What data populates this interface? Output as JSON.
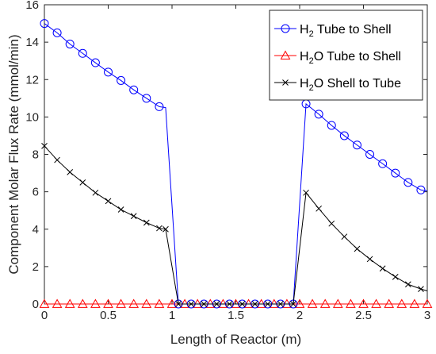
{
  "chart_data": {
    "type": "line",
    "xlabel": "Length of Reactor (m)",
    "ylabel": "Component Molar Flux Rate (mmol/min)",
    "xlim": [
      0,
      3
    ],
    "ylim": [
      0,
      16
    ],
    "xticks": [
      "0",
      "0.5",
      "1",
      "1.5",
      "2",
      "2.5",
      "3"
    ],
    "yticks": [
      "0",
      "2",
      "4",
      "6",
      "8",
      "10",
      "12",
      "14",
      "16"
    ],
    "grid": false,
    "legend_position": "top-right",
    "series": [
      {
        "name": "H2 Tube to Shell",
        "legend_parts": [
          "H",
          "2",
          " Tube to Shell"
        ],
        "color": "#0000ff",
        "marker": "circle",
        "x": [
          0,
          0.1,
          0.2,
          0.3,
          0.4,
          0.5,
          0.6,
          0.7,
          0.8,
          0.9,
          0.95,
          1.05,
          1.15,
          1.25,
          1.35,
          1.45,
          1.55,
          1.65,
          1.75,
          1.85,
          1.95,
          2.05,
          2.15,
          2.25,
          2.35,
          2.45,
          2.55,
          2.65,
          2.75,
          2.85,
          2.95,
          3.0
        ],
        "y": [
          15.0,
          14.5,
          13.9,
          13.4,
          12.9,
          12.4,
          11.95,
          11.45,
          11.0,
          10.55,
          10.5,
          0,
          0,
          0,
          0,
          0,
          0,
          0,
          0,
          0,
          0,
          10.7,
          10.15,
          9.55,
          9.0,
          8.5,
          8.0,
          7.5,
          7.0,
          6.5,
          6.1,
          6.05
        ],
        "marker_x": [
          0,
          0.1,
          0.2,
          0.3,
          0.4,
          0.5,
          0.6,
          0.7,
          0.8,
          0.9,
          1.05,
          1.15,
          1.25,
          1.35,
          1.45,
          1.55,
          1.65,
          1.75,
          1.85,
          1.95,
          2.05,
          2.15,
          2.25,
          2.35,
          2.45,
          2.55,
          2.65,
          2.75,
          2.85,
          2.95
        ],
        "marker_y": [
          15.0,
          14.5,
          13.9,
          13.4,
          12.9,
          12.4,
          11.95,
          11.45,
          11.0,
          10.55,
          0,
          0,
          0,
          0,
          0,
          0,
          0,
          0,
          0,
          0,
          10.7,
          10.15,
          9.55,
          9.0,
          8.5,
          8.0,
          7.5,
          7.0,
          6.5,
          6.1
        ]
      },
      {
        "name": "H2O Tube to Shell",
        "legend_parts": [
          "H",
          "2",
          "O Tube to Shell"
        ],
        "color": "#ff0000",
        "marker": "triangle",
        "x": [
          0,
          3
        ],
        "y": [
          0,
          0
        ],
        "marker_x": [
          0,
          0.1,
          0.2,
          0.3,
          0.4,
          0.5,
          0.6,
          0.7,
          0.8,
          0.9,
          1.0,
          1.1,
          1.2,
          1.3,
          1.4,
          1.5,
          1.6,
          1.7,
          1.8,
          1.9,
          2.0,
          2.1,
          2.2,
          2.3,
          2.4,
          2.5,
          2.6,
          2.7,
          2.8,
          2.9,
          3.0
        ],
        "marker_y": [
          0,
          0,
          0,
          0,
          0,
          0,
          0,
          0,
          0,
          0,
          0,
          0,
          0,
          0,
          0,
          0,
          0,
          0,
          0,
          0,
          0,
          0,
          0,
          0,
          0,
          0,
          0,
          0,
          0,
          0,
          0
        ]
      },
      {
        "name": "H2O Shell to Tube",
        "legend_parts": [
          "H",
          "2",
          "O Shell to Tube"
        ],
        "color": "#000000",
        "marker": "x",
        "x": [
          0,
          0.1,
          0.2,
          0.3,
          0.4,
          0.5,
          0.6,
          0.7,
          0.8,
          0.9,
          0.95,
          1.05,
          1.15,
          1.25,
          1.35,
          1.45,
          1.55,
          1.65,
          1.75,
          1.85,
          1.95,
          2.05,
          2.15,
          2.25,
          2.35,
          2.45,
          2.55,
          2.65,
          2.75,
          2.85,
          2.95,
          3.0
        ],
        "y": [
          8.45,
          7.7,
          7.05,
          6.5,
          5.95,
          5.5,
          5.05,
          4.7,
          4.35,
          4.05,
          4.0,
          0,
          0,
          0,
          0,
          0,
          0,
          0,
          0,
          0,
          0,
          5.95,
          5.1,
          4.3,
          3.6,
          2.95,
          2.4,
          1.9,
          1.45,
          1.05,
          0.8,
          0.7
        ],
        "marker_x": [
          0,
          0.1,
          0.2,
          0.3,
          0.4,
          0.5,
          0.6,
          0.7,
          0.8,
          0.9,
          0.95,
          1.05,
          1.15,
          1.25,
          1.35,
          1.45,
          1.55,
          1.65,
          1.75,
          1.85,
          1.95,
          2.05,
          2.15,
          2.25,
          2.35,
          2.45,
          2.55,
          2.65,
          2.75,
          2.85,
          2.95
        ],
        "marker_y": [
          8.45,
          7.7,
          7.05,
          6.5,
          5.95,
          5.5,
          5.05,
          4.7,
          4.35,
          4.05,
          4.0,
          0,
          0,
          0,
          0,
          0,
          0,
          0,
          0,
          0,
          0,
          5.95,
          5.1,
          4.3,
          3.6,
          2.95,
          2.4,
          1.9,
          1.45,
          1.05,
          0.8
        ]
      }
    ]
  }
}
